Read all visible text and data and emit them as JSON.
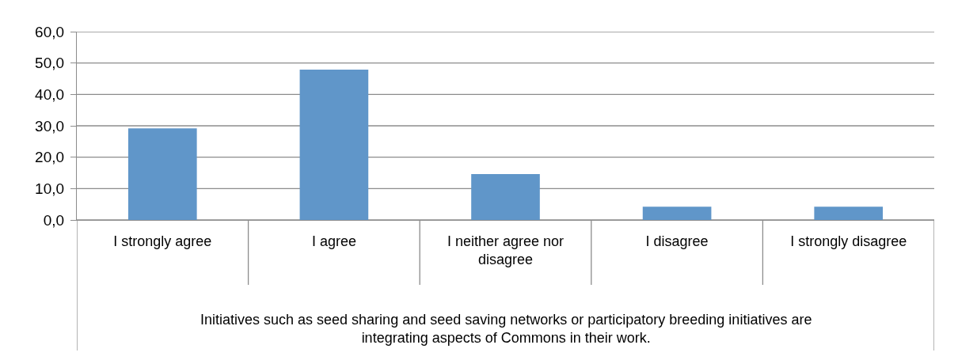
{
  "chart_data": {
    "type": "bar",
    "xlabel": "Initiatives such as seed sharing and seed saving networks or participatory breeding initiatives are integrating aspects of Commons in their work.",
    "categories": [
      "I strongly agree",
      "I agree",
      "I neither agree nor disagree",
      "I disagree",
      "I strongly disagree"
    ],
    "values": [
      29.2,
      47.9,
      14.6,
      4.2,
      4.2
    ],
    "color": "#6096c9",
    "ylim": [
      0,
      60
    ],
    "yticks": [
      {
        "value": 0,
        "label": "0,0"
      },
      {
        "value": 10,
        "label": "10,0"
      },
      {
        "value": 20,
        "label": "20,0"
      },
      {
        "value": 30,
        "label": "30,0"
      },
      {
        "value": 40,
        "label": "40,0"
      },
      {
        "value": 50,
        "label": "50,0"
      },
      {
        "value": 60,
        "label": "60,0"
      }
    ],
    "grid": "y"
  }
}
